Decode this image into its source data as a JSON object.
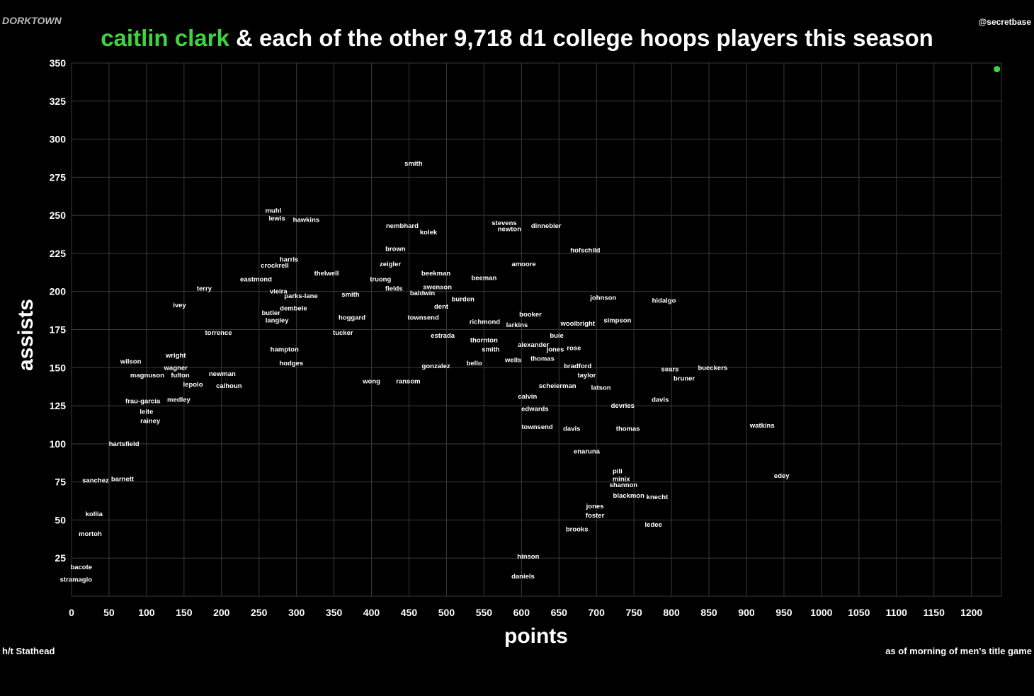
{
  "chart_data": {
    "type": "scatter",
    "brand": "DORKTOWN",
    "handle": "@secretbase",
    "title_rest": "& each of the other 9,718 d1 college hoops players this season",
    "xlabel": "points",
    "ylabel": "assists",
    "credit": "h/t Stathead",
    "note": "as of morning of men's title game",
    "xlim": [
      0,
      1240
    ],
    "ylim": [
      0,
      350
    ],
    "xticks": [
      0,
      50,
      100,
      150,
      200,
      250,
      300,
      350,
      400,
      450,
      500,
      550,
      600,
      650,
      700,
      750,
      800,
      850,
      900,
      950,
      1000,
      1050,
      1100,
      1150,
      1200
    ],
    "yticks": [
      25,
      50,
      75,
      100,
      125,
      150,
      175,
      200,
      225,
      250,
      275,
      300,
      325,
      350
    ],
    "grid": true,
    "series": [
      {
        "name": "caitlin clark",
        "color": "#3fd43f",
        "x": [
          1234
        ],
        "values": [
          346
        ]
      },
      {
        "color": "#ffffff",
        "labels": [
          "smith",
          "muhl",
          "lewis",
          "hawkins",
          "nembhard",
          "kolek",
          "stevens",
          "newton",
          "dinnebier",
          "brown",
          "hofschild",
          "harris",
          "crockrell",
          "zeigler",
          "amoore",
          "beekman",
          "eastmond",
          "thelwell",
          "truong",
          "beeman",
          "swenson",
          "terry",
          "vieira",
          "parks-lane",
          "smith",
          "fields",
          "baldwin",
          "burden",
          "johnson",
          "hidalgo",
          "ivey",
          "dembele",
          "dent",
          "butler",
          "booker",
          "hoggard",
          "townsend",
          "richmond",
          "woolbright",
          "simpson",
          "langley",
          "larkins",
          "torrence",
          "tucker",
          "estrada",
          "thornton",
          "buie",
          "alexander",
          "jones",
          "rose",
          "hampton",
          "smith",
          "wilson",
          "wright",
          "wells",
          "thomas",
          "bello",
          "bradford",
          "wagner",
          "hodges",
          "gonzalez",
          "sears",
          "bueckers",
          "magnuson",
          "fulton",
          "newman",
          "bruner",
          "taylor",
          "lepolo",
          "wong",
          "ransom",
          "calhoun",
          "latson",
          "scheierman",
          "davis",
          "calvin",
          "frau-garcia",
          "medley",
          "devries",
          "edwards",
          "leite",
          "watkins",
          "thomas",
          "townsend",
          "davis",
          "rainey",
          "hartsfield",
          "enaruna",
          "edey",
          "pili",
          "minix",
          "shannon",
          "blackmon",
          "knecht",
          "ledee",
          "jones",
          "foster",
          "brooks",
          "hinson",
          "daniels",
          "sanchez",
          "barnett",
          "kollia",
          "mortoh",
          "stramagio",
          "bacote"
        ],
        "x": [
          456,
          269,
          274,
          313,
          441,
          476,
          577,
          584,
          633,
          432,
          685,
          290,
          271,
          425,
          603,
          486,
          246,
          340,
          412,
          550,
          488,
          177,
          276,
          306,
          372,
          430,
          468,
          522,
          709,
          790,
          144,
          296,
          493,
          266,
          612,
          374,
          469,
          551,
          675,
          728,
          274,
          594,
          196,
          362,
          495,
          550,
          647,
          616,
          645,
          670,
          284,
          559,
          79,
          139,
          589,
          628,
          537,
          675,
          139,
          293,
          486,
          798,
          855,
          101,
          145,
          201,
          817,
          687,
          162,
          400,
          449,
          210,
          706,
          648,
          785,
          608,
          95,
          143,
          735,
          618,
          100,
          921,
          742,
          621,
          667,
          105,
          70,
          687,
          947,
          728,
          733,
          736,
          743,
          781,
          776,
          698,
          698,
          674,
          609,
          602,
          32,
          68,
          30,
          25,
          6,
          13
        ],
        "values": [
          284,
          253,
          248,
          247,
          243,
          239,
          245,
          241,
          243,
          228,
          227,
          221,
          217,
          218,
          218,
          212,
          208,
          212,
          208,
          209,
          203,
          202,
          200,
          197,
          198,
          202,
          199,
          195,
          196,
          194,
          191,
          189,
          190,
          186,
          185,
          183,
          183,
          180,
          179,
          181,
          181,
          178,
          173,
          173,
          171,
          168,
          171,
          165,
          162,
          163,
          162,
          162,
          154,
          158,
          155,
          156,
          153,
          151,
          150,
          153,
          151,
          149,
          150,
          145,
          145,
          146,
          143,
          145,
          139,
          141,
          141,
          138,
          137,
          138,
          129,
          131,
          128,
          129,
          125,
          123,
          121,
          112,
          110,
          111,
          110,
          115,
          100,
          95,
          79,
          82,
          77,
          73,
          66,
          65,
          47,
          59,
          53,
          44,
          26,
          13,
          76,
          77,
          54,
          41,
          11,
          19
        ]
      }
    ]
  }
}
